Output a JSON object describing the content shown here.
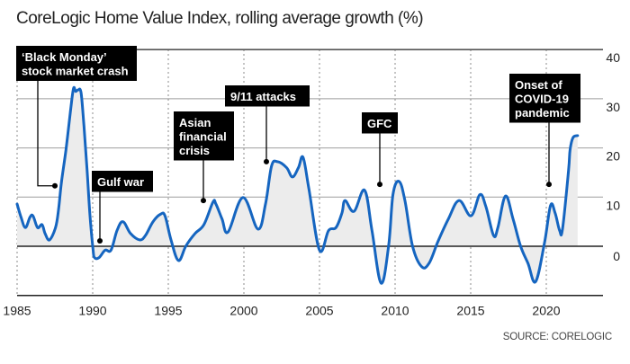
{
  "chart_data": {
    "type": "area",
    "title": "CoreLogic Home Value Index, rolling average growth (%)",
    "source": "SOURCE: CORELOGIC",
    "xlabel": "",
    "ylabel": "",
    "xlim": [
      1985,
      2024
    ],
    "ylim": [
      -10,
      40
    ],
    "x_ticks": [
      1985,
      1990,
      1995,
      2000,
      2005,
      2010,
      2015,
      2020
    ],
    "x_tick_labels": [
      "1985",
      "1990",
      "1995",
      "2000",
      "2005",
      "2010",
      "2015",
      "2020"
    ],
    "y_ticks": [
      40,
      30,
      20,
      10,
      0
    ],
    "y_tick_labels": [
      "40",
      "30",
      "20",
      "10",
      "0"
    ],
    "y_axis_side": "right",
    "grid": {
      "horizontal": "solid",
      "vertical": "dotted"
    },
    "legend": null,
    "colors": {
      "line": "#1565c0",
      "fill": "#ececec",
      "grid": "#9e9e9e",
      "axis": "#222222",
      "annotation_box": "#000000",
      "annotation_text": "#ffffff"
    },
    "series": [
      {
        "name": "Rolling average growth (%)",
        "x": [
          1985.0,
          1985.26,
          1985.55,
          1985.85,
          1986.05,
          1986.35,
          1986.65,
          1986.85,
          1987.14,
          1987.54,
          1987.74,
          1987.93,
          1988.23,
          1988.53,
          1988.73,
          1988.87,
          1989.03,
          1989.23,
          1989.42,
          1989.63,
          1989.82,
          1990.02,
          1990.12,
          1990.42,
          1990.82,
          1991.21,
          1991.61,
          1992.0,
          1992.5,
          1993.1,
          1993.49,
          1993.99,
          1994.48,
          1994.78,
          1995.18,
          1995.67,
          1996.17,
          1996.77,
          1997.36,
          1997.96,
          1998.15,
          1998.55,
          1998.95,
          1999.94,
          2000.93,
          2001.43,
          2001.83,
          2002.22,
          2002.82,
          2003.21,
          2003.61,
          2003.91,
          2004.3,
          2005.0,
          2005.6,
          2006.09,
          2006.49,
          2006.69,
          2007.28,
          2007.98,
          2008.47,
          2009.07,
          2009.57,
          2009.86,
          2010.26,
          2010.65,
          2011.15,
          2011.74,
          2012.24,
          2012.84,
          2013.53,
          2014.23,
          2015.02,
          2015.61,
          2016.01,
          2016.51,
          2016.8,
          2017.3,
          2017.8,
          2018.29,
          2018.79,
          2019.29,
          2019.88,
          2020.28,
          2020.58,
          2020.88,
          2021.07,
          2021.47,
          2021.57,
          2021.77,
          2022.07
        ],
        "values": [
          8.6,
          5.9,
          3.8,
          5.9,
          6.2,
          3.8,
          4.4,
          2.6,
          1.3,
          3.8,
          7.4,
          12.9,
          19.6,
          27.5,
          32.1,
          31.5,
          31.8,
          31.2,
          24.5,
          15.4,
          6.2,
          -0.5,
          -2.3,
          -2.3,
          -0.8,
          -0.8,
          3.2,
          5.0,
          2.6,
          1.3,
          2.2,
          5.0,
          6.5,
          6.2,
          1.3,
          -2.9,
          0.1,
          2.6,
          4.4,
          9.0,
          8.6,
          5.6,
          2.9,
          9.9,
          3.5,
          8.6,
          16.3,
          17.2,
          16.0,
          14.1,
          16.0,
          18.1,
          11.7,
          -0.8,
          3.2,
          3.8,
          6.8,
          9.3,
          7.1,
          11.4,
          3.2,
          -7.5,
          0.1,
          10.5,
          13.2,
          9.3,
          0.1,
          -4.1,
          -3.5,
          1.0,
          5.6,
          9.3,
          6.2,
          10.5,
          8.0,
          2.2,
          3.8,
          10.2,
          5.6,
          0.1,
          -3.5,
          -7.2,
          0.7,
          8.3,
          6.8,
          3.2,
          3.5,
          15.4,
          19.6,
          22.1,
          22.5
        ]
      }
    ],
    "annotations": [
      {
        "id": "black-monday",
        "lines": [
          "‘Black Monday’",
          "stock market crash"
        ],
        "point": [
          1987.5,
          12.3
        ]
      },
      {
        "id": "gulf-war",
        "lines": [
          "Gulf war"
        ],
        "point": [
          1990.5,
          1.1
        ]
      },
      {
        "id": "asian-financial-crisis",
        "lines": [
          "Asian",
          "financial",
          "crisis"
        ],
        "point": [
          1997.3,
          9.3
        ]
      },
      {
        "id": "911-attacks",
        "lines": [
          "9/11 attacks"
        ],
        "point": [
          2001.5,
          17.2
        ]
      },
      {
        "id": "gfc",
        "lines": [
          "GFC"
        ],
        "point": [
          2008.0,
          12.6
        ]
      },
      {
        "id": "covid-19",
        "lines": [
          "Onset of",
          "COVID-19",
          "pandemic"
        ],
        "point": [
          2020.2,
          12.6
        ]
      }
    ]
  }
}
